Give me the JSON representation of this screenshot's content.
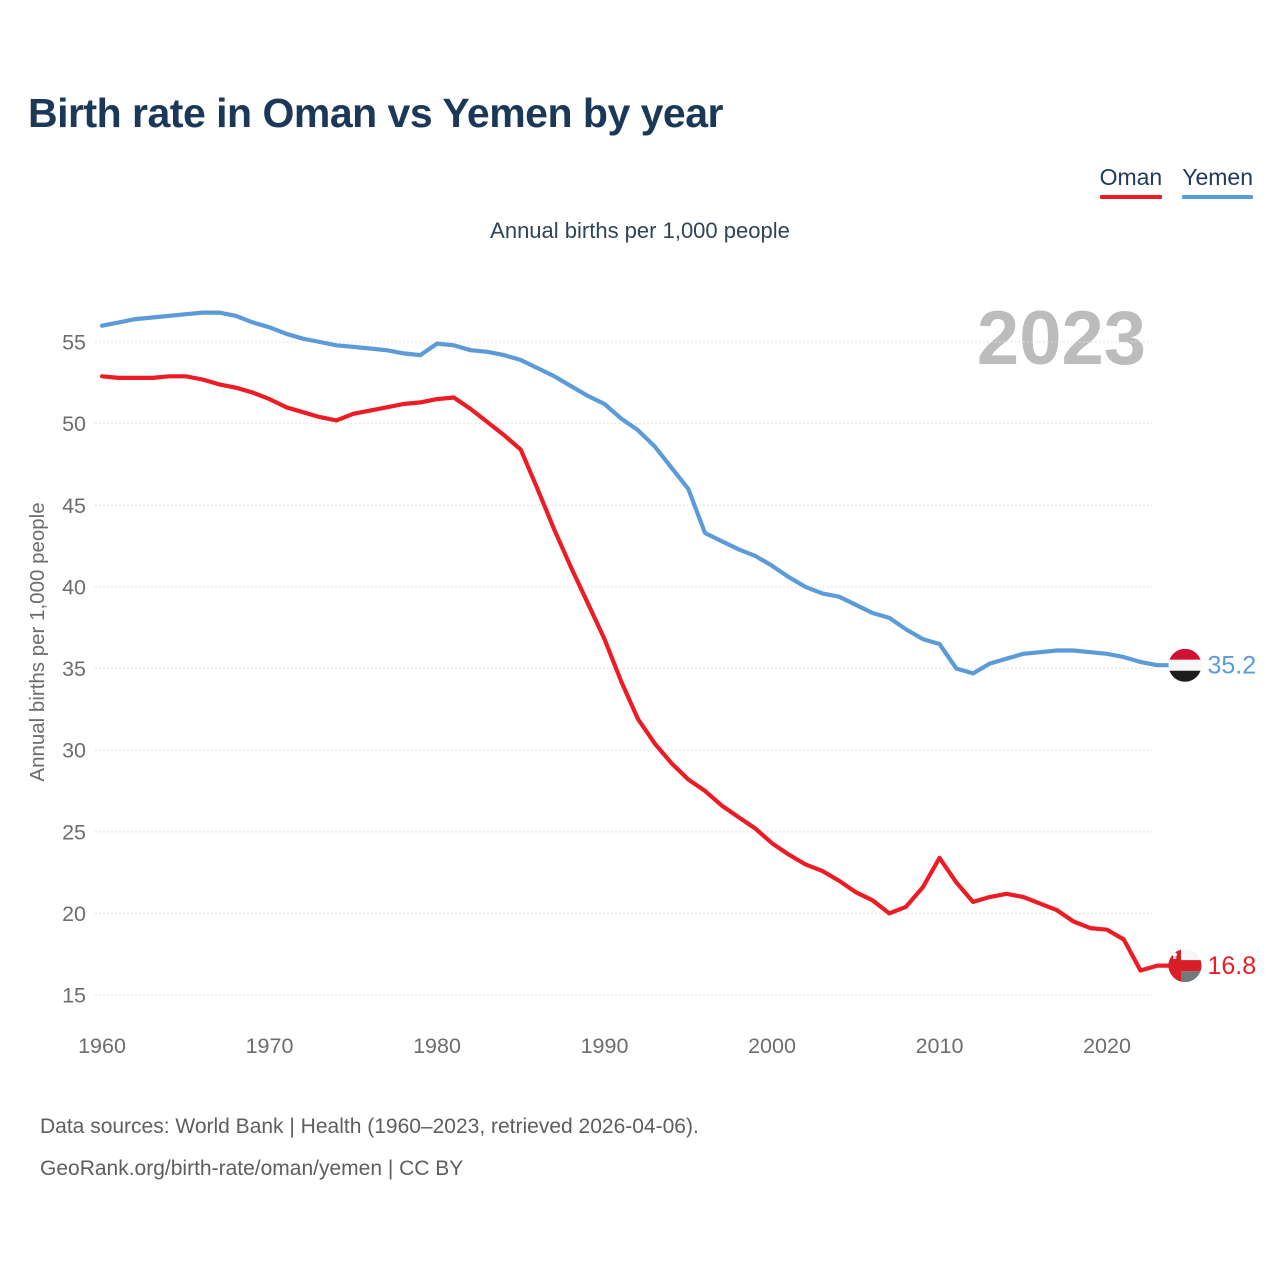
{
  "header": {
    "title": "Birth rate in Oman vs Yemen by year"
  },
  "legend": [
    {
      "label": "Oman",
      "color": "#ed1c24"
    },
    {
      "label": "Yemen",
      "color": "#5b9bd8"
    }
  ],
  "watermark": "2023",
  "chart_data": {
    "type": "line",
    "title": "Birth rate in Oman vs Yemen by year",
    "subtitle": "Annual births per 1,000 people",
    "ylabel": "Annual births per 1,000 people",
    "start_year": 1960,
    "end_year": 2023,
    "x_ticks": [
      1960,
      1970,
      1980,
      1990,
      2000,
      2010,
      2020
    ],
    "y_ticks": [
      15,
      20,
      25,
      30,
      35,
      40,
      45,
      50,
      55
    ],
    "ylim": [
      13.5,
      58
    ],
    "grid": "horizontal-dotted",
    "legend_position": "top-right",
    "series": [
      {
        "name": "Oman",
        "color": "#ed1c24",
        "end_label": "16.8",
        "flag": "oman",
        "values": [
          52.9,
          52.8,
          52.8,
          52.8,
          52.9,
          52.9,
          52.7,
          52.4,
          52.2,
          51.9,
          51.5,
          51.0,
          50.7,
          50.4,
          50.2,
          50.6,
          50.8,
          51.0,
          51.2,
          51.3,
          51.5,
          51.6,
          50.9,
          50.1,
          49.3,
          48.4,
          46.0,
          43.5,
          41.2,
          39.0,
          36.8,
          34.2,
          31.9,
          30.4,
          29.2,
          28.2,
          27.5,
          26.6,
          25.9,
          25.2,
          24.3,
          23.6,
          23.0,
          22.6,
          22.0,
          21.3,
          20.8,
          20.0,
          20.4,
          21.6,
          23.4,
          21.9,
          20.7,
          21.0,
          21.2,
          21.0,
          20.6,
          20.2,
          19.5,
          19.1,
          19.0,
          18.4,
          16.5,
          16.8
        ]
      },
      {
        "name": "Yemen",
        "color": "#5b9bd8",
        "end_label": "35.2",
        "flag": "yemen",
        "values": [
          56.0,
          56.2,
          56.4,
          56.5,
          56.6,
          56.7,
          56.8,
          56.8,
          56.6,
          56.2,
          55.9,
          55.5,
          55.2,
          55.0,
          54.8,
          54.7,
          54.6,
          54.5,
          54.3,
          54.2,
          54.9,
          54.8,
          54.5,
          54.4,
          54.2,
          53.9,
          53.4,
          52.9,
          52.3,
          51.7,
          51.2,
          50.3,
          49.6,
          48.6,
          47.3,
          46.0,
          43.3,
          42.8,
          42.3,
          41.9,
          41.3,
          40.6,
          40.0,
          39.6,
          39.4,
          38.9,
          38.4,
          38.1,
          37.4,
          36.8,
          36.5,
          35.0,
          34.7,
          35.3,
          35.6,
          35.9,
          36.0,
          36.1,
          36.1,
          36.0,
          35.9,
          35.7,
          35.4,
          35.2
        ]
      }
    ]
  },
  "footer": {
    "line1": "Data sources: World Bank | Health (1960–2023, retrieved 2026-04-06).",
    "line2": "GeoRank.org/birth-rate/oman/yemen | CC BY"
  }
}
